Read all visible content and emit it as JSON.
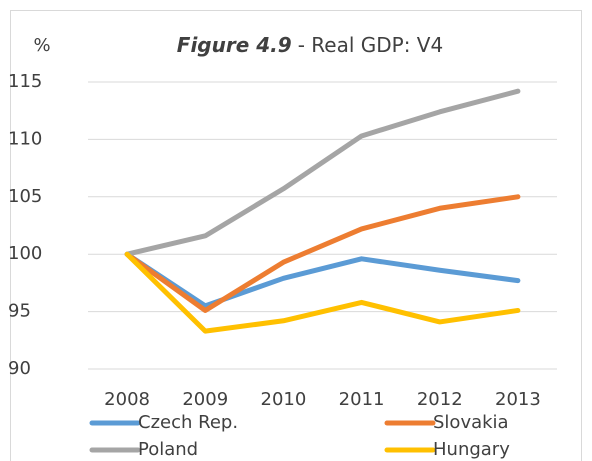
{
  "chart_data": {
    "type": "line",
    "title_parts": [
      "Figure 4.9",
      "- Real GDP: V4"
    ],
    "y_label": "%",
    "x": [
      2008,
      2009,
      2010,
      2011,
      2012,
      2013
    ],
    "ylim": [
      90,
      115
    ],
    "yticks": [
      90,
      95,
      100,
      105,
      110,
      115
    ],
    "grid": true,
    "series": [
      {
        "name": "Czech Rep.",
        "color": "#5b9bd5",
        "values": [
          100,
          95.5,
          97.9,
          99.6,
          98.6,
          97.7
        ]
      },
      {
        "name": "Slovakia",
        "color": "#ed7d31",
        "values": [
          100,
          95.1,
          99.3,
          102.2,
          104.0,
          105.0
        ]
      },
      {
        "name": "Poland",
        "color": "#a5a5a5",
        "values": [
          100,
          101.6,
          105.7,
          110.3,
          112.4,
          114.2
        ]
      },
      {
        "name": "Hungary",
        "color": "#ffc000",
        "values": [
          100,
          93.3,
          94.2,
          95.8,
          94.1,
          95.1
        ]
      }
    ]
  }
}
